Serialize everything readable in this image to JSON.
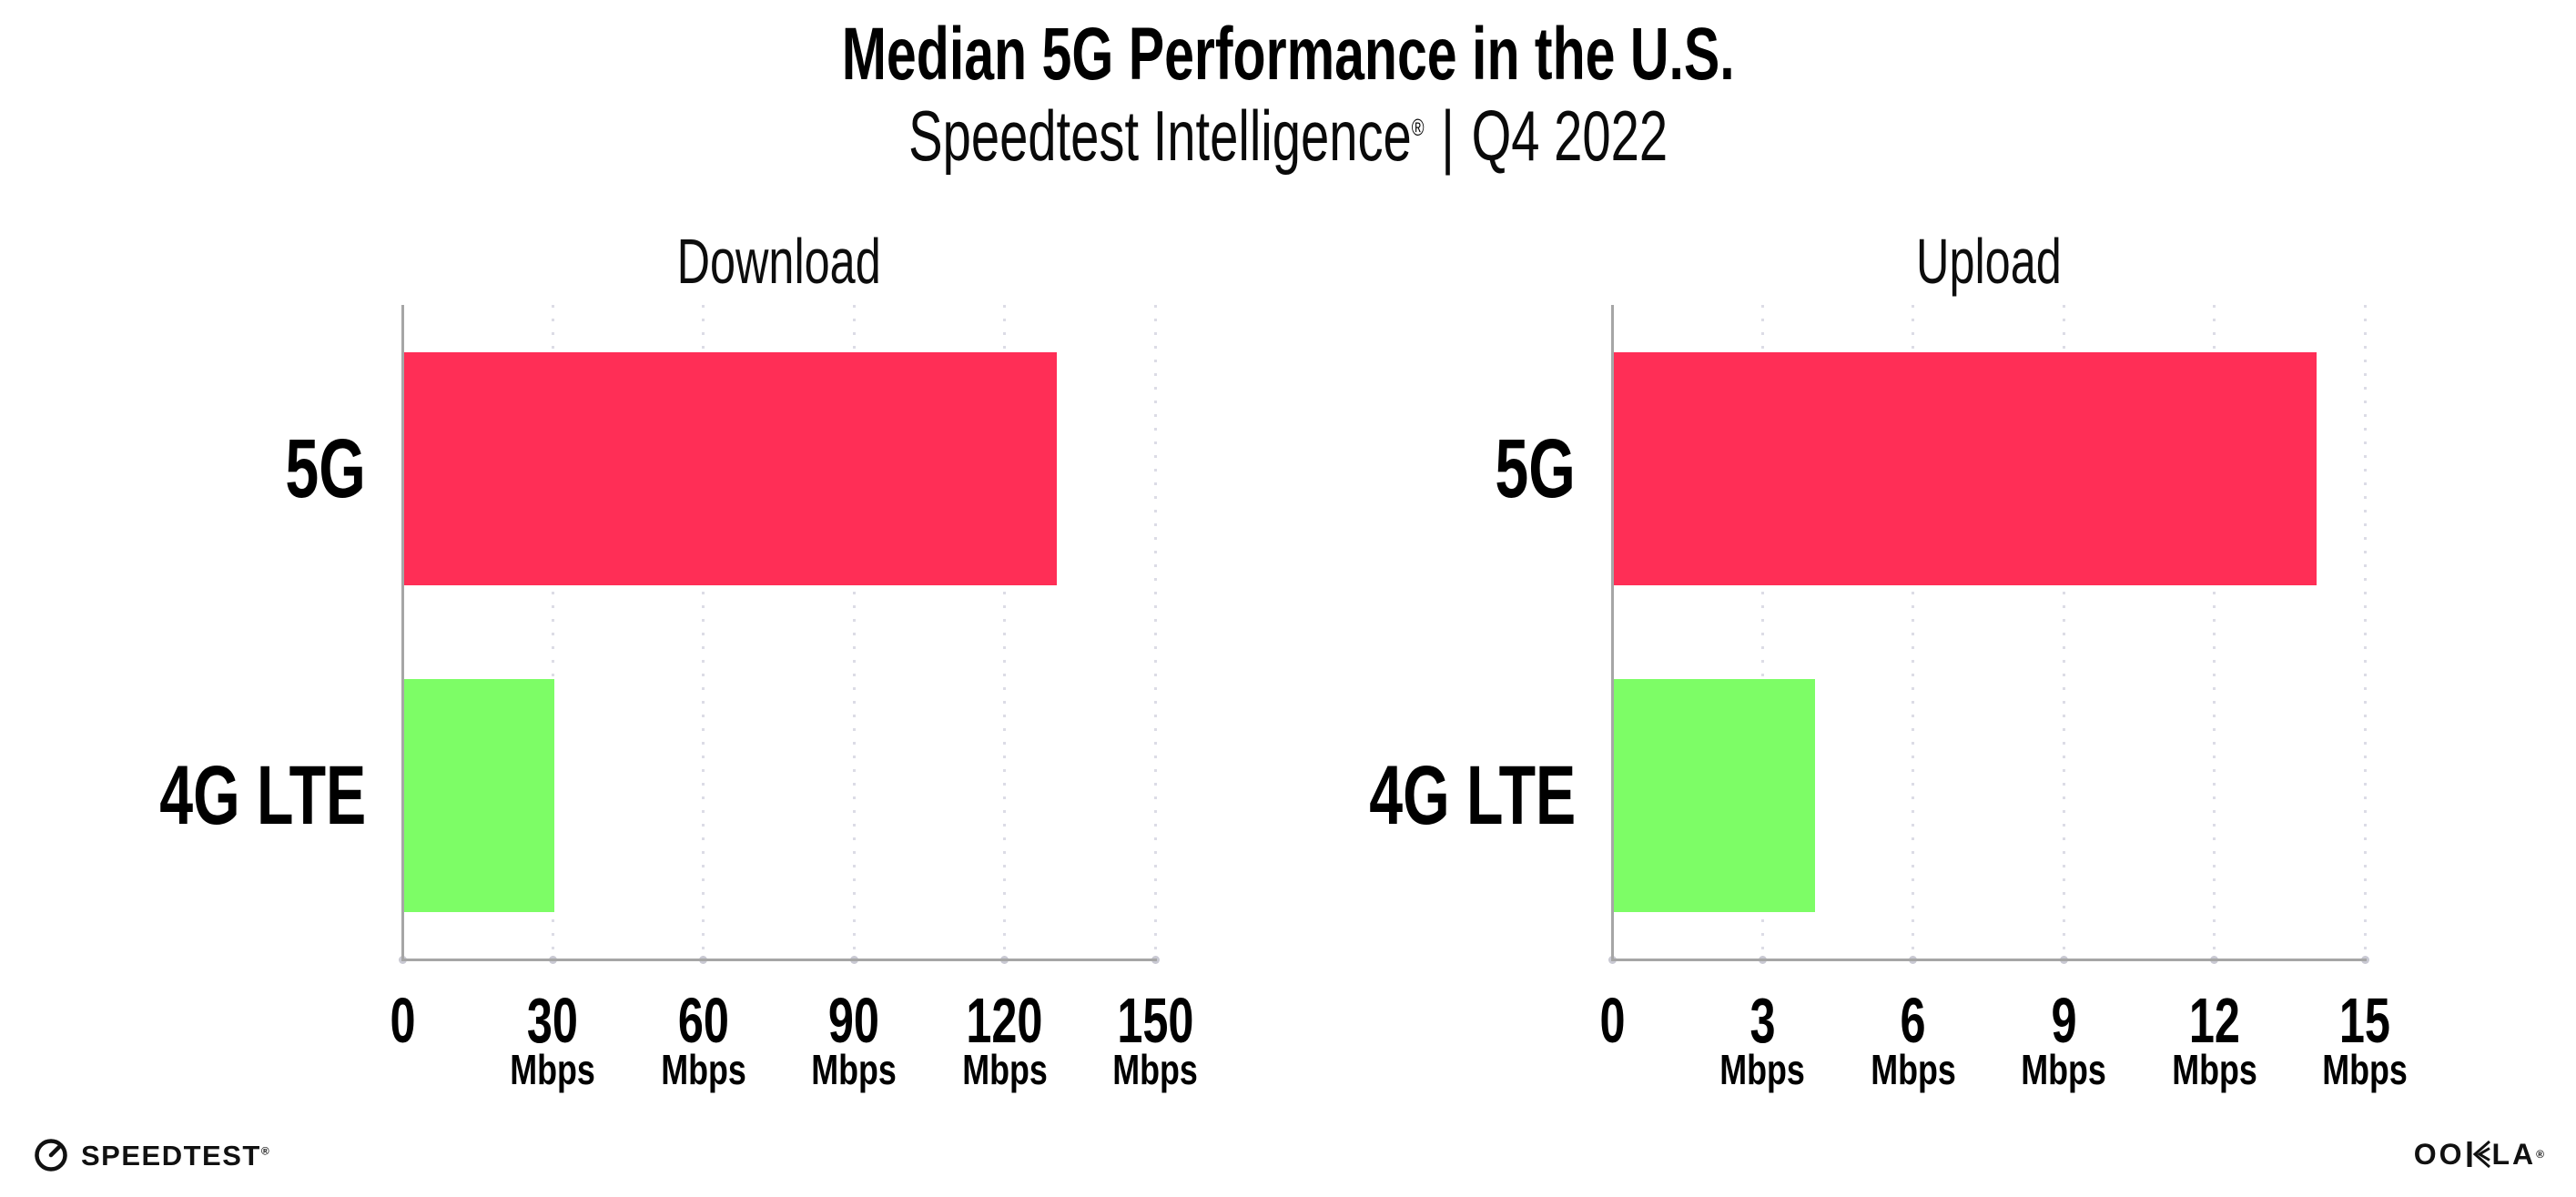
{
  "header": {
    "title": "Median 5G Performance in the U.S.",
    "subtitle": {
      "brand": "Speedtest Intelligence",
      "reg_mark": "®",
      "divider": "|",
      "period": "Q4 2022"
    }
  },
  "chart_data": [
    {
      "id": "download",
      "type": "bar",
      "orientation": "horizontal",
      "title": "Download",
      "categories": [
        "5G",
        "4G LTE"
      ],
      "values": [
        130,
        30
      ],
      "value_unit": "Mbps",
      "xlim": [
        0,
        150
      ],
      "xticks": [
        0,
        30,
        60,
        90,
        120,
        150
      ],
      "xtick_unit": "Mbps",
      "grid": "vertical-dotted",
      "bar_colors": [
        "#FF2E56",
        "#7DFD66"
      ]
    },
    {
      "id": "upload",
      "type": "bar",
      "orientation": "horizontal",
      "title": "Upload",
      "categories": [
        "5G",
        "4G LTE"
      ],
      "values": [
        14,
        4
      ],
      "value_unit": "Mbps",
      "xlim": [
        0,
        15
      ],
      "xticks": [
        0,
        3,
        6,
        9,
        12,
        15
      ],
      "xtick_unit": "Mbps",
      "grid": "vertical-dotted",
      "bar_colors": [
        "#FF2E56",
        "#7DFD66"
      ]
    }
  ],
  "footer": {
    "speedtest": {
      "label": "SPEEDTEST",
      "mark": "®",
      "icon": "speedometer-gauge-icon"
    },
    "ookla": {
      "label_left": "OO",
      "label_right": "LA",
      "label_full": "OOKLA",
      "mark": "®",
      "icon": "ookla-chevron-k-icon"
    }
  },
  "colors": {
    "background": "#FFFFFF",
    "bar_5g": "#FF2E56",
    "bar_4g_lte": "#7DFD66",
    "axis": "#A6A6A6",
    "gridline": "#DCDCE6",
    "tick_dot": "#C9C9D3",
    "text": "#000000"
  }
}
